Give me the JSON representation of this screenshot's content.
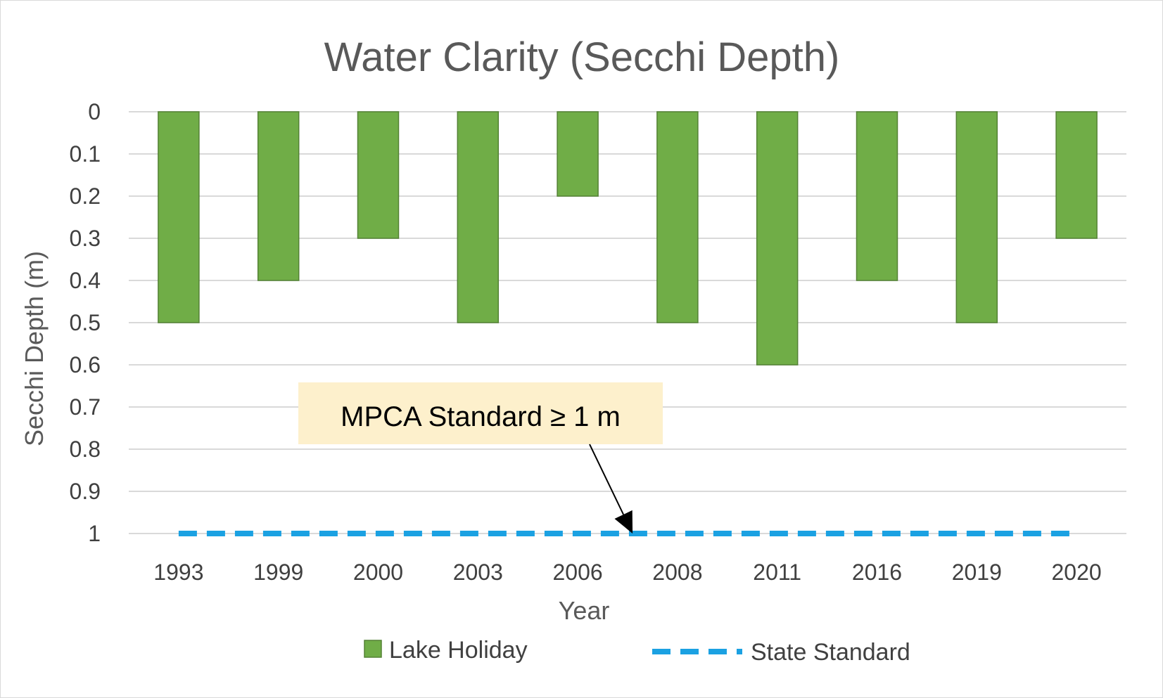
{
  "chart_data": {
    "type": "bar",
    "title": "Water Clarity (Secchi Depth)",
    "xlabel": "Year",
    "ylabel": "Secchi Depth (m)",
    "y_axis_reversed": true,
    "ylim": [
      0,
      1
    ],
    "yticks": [
      "0",
      "0.1",
      "0.2",
      "0.3",
      "0.4",
      "0.5",
      "0.6",
      "0.7",
      "0.8",
      "0.9",
      "1"
    ],
    "categories": [
      "1993",
      "1999",
      "2000",
      "2003",
      "2006",
      "2008",
      "2011",
      "2016",
      "2019",
      "2020"
    ],
    "series": [
      {
        "name": "Lake Holiday",
        "kind": "bar",
        "color": "#70ad47",
        "values": [
          0.5,
          0.4,
          0.3,
          0.5,
          0.2,
          0.5,
          0.6,
          0.4,
          0.5,
          0.3
        ]
      },
      {
        "name": "State Standard",
        "kind": "dashed-line",
        "color": "#1ba1e2",
        "values": [
          1,
          1,
          1,
          1,
          1,
          1,
          1,
          1,
          1,
          1
        ]
      }
    ],
    "grid": true,
    "legend_position": "bottom",
    "annotation": {
      "text": "MPCA Standard ≥ 1 m",
      "background": "#fdf0cc",
      "points_to": {
        "category": "2006",
        "y": 1
      }
    }
  }
}
